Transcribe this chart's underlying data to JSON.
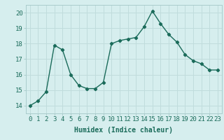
{
  "x": [
    0,
    1,
    2,
    3,
    4,
    5,
    6,
    7,
    8,
    9,
    10,
    11,
    12,
    13,
    14,
    15,
    16,
    17,
    18,
    19,
    20,
    21,
    22,
    23
  ],
  "y": [
    14.0,
    14.3,
    14.9,
    17.9,
    17.6,
    16.0,
    15.3,
    15.1,
    15.1,
    15.5,
    18.0,
    18.2,
    18.3,
    18.4,
    19.1,
    20.1,
    19.3,
    18.6,
    18.1,
    17.3,
    16.9,
    16.7,
    16.3,
    16.3
  ],
  "line_color": "#1a6b5a",
  "marker": "D",
  "marker_size": 2.2,
  "line_width": 1.0,
  "bg_color": "#d6eeee",
  "grid_color": "#c0dcdc",
  "xlabel": "Humidex (Indice chaleur)",
  "xlim": [
    -0.5,
    23.5
  ],
  "ylim": [
    13.5,
    20.5
  ],
  "yticks": [
    14,
    15,
    16,
    17,
    18,
    19,
    20
  ],
  "xticks": [
    0,
    1,
    2,
    3,
    4,
    5,
    6,
    7,
    8,
    9,
    10,
    11,
    12,
    13,
    14,
    15,
    16,
    17,
    18,
    19,
    20,
    21,
    22,
    23
  ],
  "label_fontsize": 7,
  "tick_fontsize": 6.5
}
